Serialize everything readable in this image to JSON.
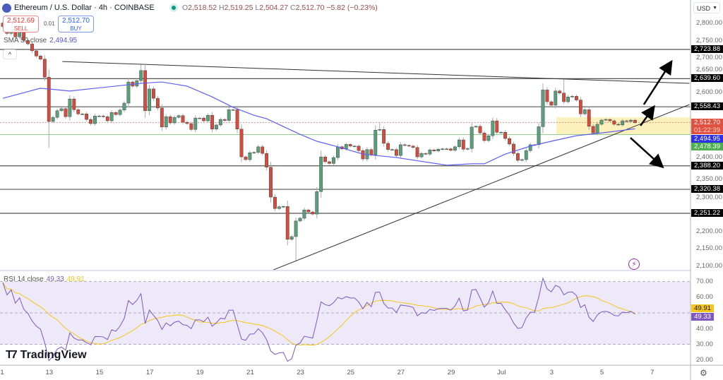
{
  "header": {
    "title": "Ethereum / U.S. Dollar · 4h · COINBASE",
    "ohlc": {
      "o_label": "O",
      "o": "2,518.52",
      "h_label": "H",
      "h": "2,519.25",
      "l_label": "L",
      "l": "2,504.27",
      "c_label": "C",
      "c": "2,512.70",
      "change": "−5.82 (−0.23%)"
    },
    "sell": {
      "price": "2,512.69",
      "label": "SELL"
    },
    "buy": {
      "price": "2,512.70",
      "label": "BUY"
    },
    "spread": "0.01",
    "sma_legend": {
      "label": "SMA 50 close",
      "value": "2,494.95"
    },
    "collapse_icon": "chevron-up"
  },
  "price_axis": {
    "currency": "USD",
    "ticks": [
      "2,800.00",
      "2,750.00",
      "2,700.00",
      "2,650.00",
      "2,600.00",
      "2,400.00",
      "2,350.00",
      "2,300.00",
      "2,200.00",
      "2,150.00",
      "2,100.00"
    ],
    "tick_values": [
      2800,
      2750,
      2700,
      2650,
      2600,
      2400,
      2350,
      2300,
      2200,
      2150,
      2100
    ],
    "level_labels": [
      {
        "text": "2,723.88",
        "value": 2723.88,
        "bg": "#000000"
      },
      {
        "text": "2,639.60",
        "value": 2639.6,
        "bg": "#000000"
      },
      {
        "text": "2,558.43",
        "value": 2558.43,
        "bg": "#000000"
      },
      {
        "text": "2,388.20",
        "value": 2388.2,
        "bg": "#000000"
      },
      {
        "text": "2,320.38",
        "value": 2320.38,
        "bg": "#000000"
      },
      {
        "text": "2,251.22",
        "value": 2251.22,
        "bg": "#000000"
      }
    ],
    "last_price": {
      "text": "2,512.70",
      "countdown": "01:22:39",
      "bg": "#e0513f"
    },
    "sma_label": {
      "text": "2,494.95",
      "bg": "#2f2fe8"
    },
    "support_label": {
      "text": "2,478.39",
      "bg": "#4caf50"
    }
  },
  "rsi": {
    "legend_label": "RSI 14 close",
    "value": "49.33",
    "ma_value": "49.91",
    "ticks": [
      "70.00",
      "60.00",
      "40.00",
      "30.00",
      "20.00"
    ],
    "tick_values": [
      70,
      60,
      40,
      30,
      20
    ],
    "upper_band": 70,
    "lower_band": 30,
    "line_color": "#7e57c2",
    "ma_color": "#f5c518"
  },
  "time_axis": {
    "labels": [
      {
        "text": "1",
        "bar": -0.3
      },
      {
        "text": "13",
        "bar": 11.1
      },
      {
        "text": "15",
        "bar": 23.1
      },
      {
        "text": "17",
        "bar": 35.1
      },
      {
        "text": "19",
        "bar": 47.1
      },
      {
        "text": "21",
        "bar": 59.1
      },
      {
        "text": "23",
        "bar": 71.1
      },
      {
        "text": "25",
        "bar": 83.1
      },
      {
        "text": "27",
        "bar": 95.1
      },
      {
        "text": "29",
        "bar": 107.1
      },
      {
        "text": "Jul",
        "bar": 119.1
      },
      {
        "text": "3",
        "bar": 131.1
      },
      {
        "text": "5",
        "bar": 143.1
      },
      {
        "text": "7",
        "bar": 155.1
      }
    ]
  },
  "branding": {
    "logo_text": "TradingView"
  },
  "icons": {
    "settings": "gear-icon",
    "alert": "lightning-icon"
  },
  "chart_data": {
    "type": "candlestick",
    "timeframe": "4h",
    "colors": {
      "up": "#5a9e7c",
      "down": "#d64b3d",
      "sma": "#5e5ef5"
    },
    "closes": [
      2790,
      2770,
      2785,
      2760,
      2775,
      2750,
      2740,
      2720,
      2705,
      2696,
      2644,
      2516,
      2528,
      2547,
      2553,
      2530,
      2581,
      2550,
      2538,
      2538,
      2522,
      2510,
      2532,
      2532,
      2530,
      2518,
      2542,
      2536,
      2549,
      2569,
      2630,
      2618,
      2634,
      2663,
      2547,
      2610,
      2583,
      2555,
      2500,
      2530,
      2512,
      2528,
      2533,
      2514,
      2510,
      2493,
      2526,
      2526,
      2518,
      2534,
      2494,
      2506,
      2522,
      2519,
      2550,
      2550,
      2494,
      2414,
      2406,
      2426,
      2427,
      2443,
      2424,
      2384,
      2298,
      2265,
      2270,
      2271,
      2176,
      2184,
      2229,
      2237,
      2261,
      2255,
      2249,
      2314,
      2414,
      2400,
      2395,
      2412,
      2443,
      2437,
      2450,
      2445,
      2445,
      2432,
      2408,
      2435,
      2420,
      2491,
      2493,
      2453,
      2435,
      2435,
      2418,
      2449,
      2447,
      2445,
      2441,
      2414,
      2424,
      2422,
      2434,
      2431,
      2436,
      2437,
      2437,
      2433,
      2443,
      2463,
      2436,
      2438,
      2500,
      2502,
      2483,
      2461,
      2475,
      2518,
      2485,
      2485,
      2467,
      2451,
      2424,
      2404,
      2406,
      2432,
      2449,
      2449,
      2501,
      2607,
      2573,
      2563,
      2604,
      2598,
      2573,
      2587,
      2589,
      2578,
      2538,
      2550,
      2502,
      2483,
      2508,
      2520,
      2522,
      2518,
      2508,
      2506,
      2518,
      2516,
      2520,
      2512.7
    ],
    "wick_overrides": {
      "11": {
        "l": 2440
      },
      "33": {
        "h": 2680
      },
      "70": {
        "l": 2115
      },
      "90": {
        "h": 2512
      },
      "134": {
        "h": 2638
      }
    },
    "sma50": [
      [
        0,
        2583
      ],
      [
        9,
        2612
      ],
      [
        16,
        2604
      ],
      [
        33,
        2626
      ],
      [
        38,
        2630
      ],
      [
        44,
        2618
      ],
      [
        50,
        2587
      ],
      [
        55,
        2557
      ],
      [
        60,
        2534
      ],
      [
        63,
        2524
      ],
      [
        71,
        2479
      ],
      [
        75,
        2459
      ],
      [
        80,
        2443
      ],
      [
        86,
        2422
      ],
      [
        94,
        2412
      ],
      [
        106,
        2390
      ],
      [
        112,
        2394
      ],
      [
        115,
        2394
      ],
      [
        120,
        2422
      ],
      [
        126,
        2445
      ],
      [
        131,
        2459
      ],
      [
        137,
        2475
      ],
      [
        143,
        2483
      ],
      [
        151,
        2494.95
      ]
    ],
    "horizontal_levels": [
      2723.88,
      2639.6,
      2558.43,
      2388.2,
      2320.38,
      2251.22
    ],
    "support_line": 2478.39,
    "last_price": 2512.7,
    "trendlines": [
      {
        "from": [
          14.2,
          2689
        ],
        "to": [
          164,
          2626
        ]
      },
      {
        "from": [
          64.6,
          2088
        ],
        "to": [
          164,
          2565
        ]
      }
    ],
    "zone": {
      "from_bar": 132.2,
      "to_bar": 164,
      "low": 2478.39,
      "high": 2528
    },
    "arrows": [
      {
        "from": [
          153.1,
          2565
        ],
        "to": [
          159.5,
          2685
        ]
      },
      {
        "from": [
          152.3,
          2504
        ],
        "to": [
          155.3,
          2555
        ]
      },
      {
        "from": [
          149.9,
          2469
        ],
        "to": [
          157.3,
          2388
        ]
      }
    ],
    "ylim": [
      2080,
      2830
    ]
  }
}
